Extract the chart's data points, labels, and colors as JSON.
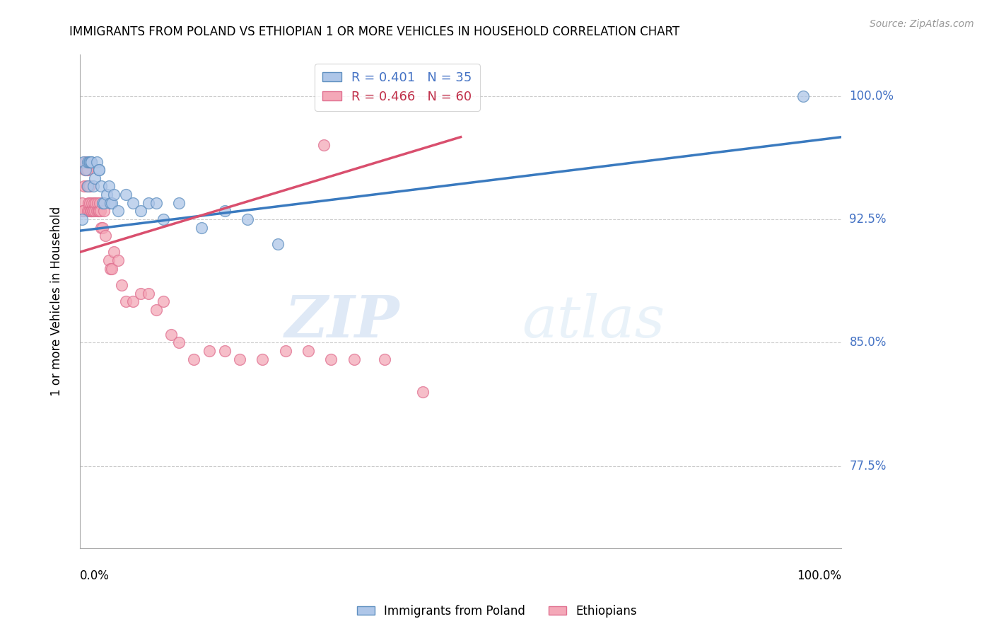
{
  "title": "IMMIGRANTS FROM POLAND VS ETHIOPIAN 1 OR MORE VEHICLES IN HOUSEHOLD CORRELATION CHART",
  "source": "Source: ZipAtlas.com",
  "ylabel": "1 or more Vehicles in Household",
  "ytick_labels": [
    "77.5%",
    "85.0%",
    "92.5%",
    "100.0%"
  ],
  "ytick_values": [
    0.775,
    0.85,
    0.925,
    1.0
  ],
  "xlim": [
    0.0,
    1.0
  ],
  "ylim": [
    0.725,
    1.025
  ],
  "legend_label1": "R = 0.401   N = 35",
  "legend_label2": "R = 0.466   N = 60",
  "scatter_color1": "#aec6e8",
  "scatter_color2": "#f4a8b8",
  "line_color1": "#3a7abf",
  "line_color2": "#d94f6e",
  "watermark_color": "#ddeeff",
  "poland_x": [
    0.003,
    0.005,
    0.008,
    0.01,
    0.01,
    0.012,
    0.013,
    0.015,
    0.015,
    0.018,
    0.02,
    0.022,
    0.025,
    0.025,
    0.028,
    0.03,
    0.032,
    0.035,
    0.038,
    0.04,
    0.042,
    0.045,
    0.05,
    0.06,
    0.07,
    0.08,
    0.09,
    0.1,
    0.11,
    0.13,
    0.16,
    0.19,
    0.22,
    0.26,
    0.95
  ],
  "poland_y": [
    0.925,
    0.96,
    0.955,
    0.96,
    0.945,
    0.96,
    0.96,
    0.96,
    0.96,
    0.945,
    0.95,
    0.96,
    0.955,
    0.955,
    0.945,
    0.935,
    0.935,
    0.94,
    0.945,
    0.935,
    0.935,
    0.94,
    0.93,
    0.94,
    0.935,
    0.93,
    0.935,
    0.935,
    0.925,
    0.935,
    0.92,
    0.93,
    0.925,
    0.91,
    1.0
  ],
  "ethiopia_x": [
    0.003,
    0.004,
    0.005,
    0.006,
    0.007,
    0.008,
    0.009,
    0.009,
    0.01,
    0.01,
    0.011,
    0.012,
    0.012,
    0.013,
    0.013,
    0.014,
    0.015,
    0.015,
    0.016,
    0.017,
    0.018,
    0.019,
    0.02,
    0.021,
    0.022,
    0.023,
    0.024,
    0.025,
    0.026,
    0.027,
    0.028,
    0.03,
    0.032,
    0.034,
    0.038,
    0.04,
    0.042,
    0.045,
    0.05,
    0.055,
    0.06,
    0.07,
    0.08,
    0.09,
    0.1,
    0.11,
    0.12,
    0.13,
    0.15,
    0.17,
    0.19,
    0.21,
    0.24,
    0.27,
    0.3,
    0.33,
    0.36,
    0.4,
    0.45,
    0.32
  ],
  "ethiopia_y": [
    0.935,
    0.93,
    0.93,
    0.945,
    0.955,
    0.96,
    0.945,
    0.955,
    0.93,
    0.955,
    0.935,
    0.93,
    0.945,
    0.935,
    0.945,
    0.93,
    0.93,
    0.93,
    0.935,
    0.93,
    0.93,
    0.935,
    0.93,
    0.935,
    0.93,
    0.935,
    0.93,
    0.93,
    0.935,
    0.93,
    0.92,
    0.92,
    0.93,
    0.915,
    0.9,
    0.895,
    0.895,
    0.905,
    0.9,
    0.885,
    0.875,
    0.875,
    0.88,
    0.88,
    0.87,
    0.875,
    0.855,
    0.85,
    0.84,
    0.845,
    0.845,
    0.84,
    0.84,
    0.845,
    0.845,
    0.84,
    0.84,
    0.84,
    0.82,
    0.97
  ],
  "line1_x_start": 0.0,
  "line1_x_end": 1.0,
  "line1_y_start": 0.918,
  "line1_y_end": 0.975,
  "line2_x_start": 0.0,
  "line2_x_end": 0.5,
  "line2_y_start": 0.905,
  "line2_y_end": 0.975
}
